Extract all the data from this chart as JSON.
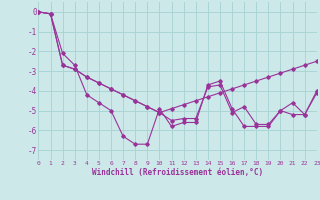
{
  "background_color": "#cce8e8",
  "grid_color": "#aad4d4",
  "line_color": "#993399",
  "xlabel": "Windchill (Refroidissement éolien,°C)",
  "xlabel_color": "#993399",
  "tick_color": "#993399",
  "xlim": [
    0,
    23
  ],
  "ylim": [
    -7.5,
    0.5
  ],
  "yticks": [
    0,
    -1,
    -2,
    -3,
    -4,
    -5,
    -6,
    -7
  ],
  "xticks": [
    0,
    1,
    2,
    3,
    4,
    5,
    6,
    7,
    8,
    9,
    10,
    11,
    12,
    13,
    14,
    15,
    16,
    17,
    18,
    19,
    20,
    21,
    22,
    23
  ],
  "series": [
    [
      0.0,
      -0.1,
      -2.1,
      -2.7,
      -4.2,
      -4.6,
      -5.0,
      -6.3,
      -6.7,
      -6.7,
      -4.9,
      -5.8,
      -5.6,
      -5.6,
      -3.7,
      -3.5,
      -4.9,
      -5.8,
      -5.8,
      -5.8,
      -5.0,
      -5.2,
      -5.2,
      -4.1
    ],
    [
      0.0,
      -0.1,
      -2.7,
      -2.9,
      -3.3,
      -3.6,
      -3.9,
      -4.2,
      -4.5,
      -4.8,
      -5.1,
      -4.9,
      -4.7,
      -4.5,
      -4.3,
      -4.1,
      -3.9,
      -3.7,
      -3.5,
      -3.3,
      -3.1,
      -2.9,
      -2.7,
      -2.5
    ],
    [
      0.0,
      -0.1,
      -2.7,
      -2.9,
      -3.3,
      -3.6,
      -3.9,
      -4.2,
      -4.5,
      -4.8,
      -5.1,
      -5.5,
      -5.4,
      -5.4,
      -3.8,
      -3.7,
      -5.1,
      -4.8,
      -5.7,
      -5.7,
      -5.0,
      -4.6,
      -5.2,
      -4.0
    ]
  ]
}
